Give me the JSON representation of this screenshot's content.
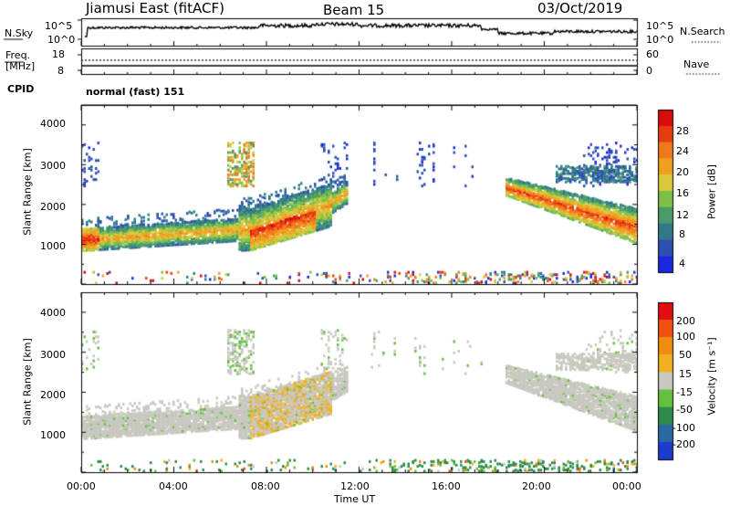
{
  "header": {
    "station": "Jiamusi East (fitACF)",
    "beam": "Beam 15",
    "date": "03/Oct/2019"
  },
  "noise_panel": {
    "left_label": "N.Sky",
    "right_label": "N.Search",
    "left_ticks": [
      "10^5",
      "10^0"
    ],
    "right_ticks": [
      "10^5",
      "10^0"
    ]
  },
  "freq_panel": {
    "left_label_line1": "Freq.",
    "left_label_line2": "[MHz]",
    "left_ticks": [
      "18",
      "8"
    ],
    "right_ticks": [
      "60",
      "0"
    ],
    "right_label": "Nave"
  },
  "cpid": {
    "label": "CPID",
    "program": "normal (fast) 151"
  },
  "chart_data": [
    {
      "type": "heatmap",
      "panel": "power",
      "ylabel": "Slant Range [km]",
      "yticks": [
        "1000",
        "2000",
        "3000",
        "4000"
      ],
      "ylim": [
        0,
        4500
      ],
      "colorbar": {
        "label": "Power [dB]",
        "ticks": [
          "4",
          "8",
          "12",
          "16",
          "20",
          "24",
          "28"
        ],
        "range": [
          0,
          30
        ],
        "colors": [
          "#1a28e0",
          "#2c4fb0",
          "#2e7a8a",
          "#4a9a6a",
          "#7cc04a",
          "#d8c83a",
          "#f0a020",
          "#f07818",
          "#e83c10",
          "#d80c0c"
        ]
      }
    },
    {
      "type": "heatmap",
      "panel": "velocity",
      "ylabel": "Slant Range [km]",
      "yticks": [
        "1000",
        "2000",
        "3000",
        "4000"
      ],
      "ylim": [
        0,
        4500
      ],
      "colorbar": {
        "label": "Velocity [m s⁻¹]",
        "ticks": [
          "200",
          "100",
          "50",
          "15",
          "-15",
          "-50",
          "-100",
          "-200"
        ],
        "colors": [
          "#1c3cd0",
          "#2a6aa0",
          "#2e8a4a",
          "#66c040",
          "#c8c8c0",
          "#f0b020",
          "#f08c10",
          "#f05010",
          "#e01010"
        ]
      }
    }
  ],
  "x_axis": {
    "ticks": [
      "00:00",
      "04:00",
      "08:00",
      "12:00",
      "16:00",
      "20:00",
      "00:00"
    ],
    "label": "Time UT"
  }
}
